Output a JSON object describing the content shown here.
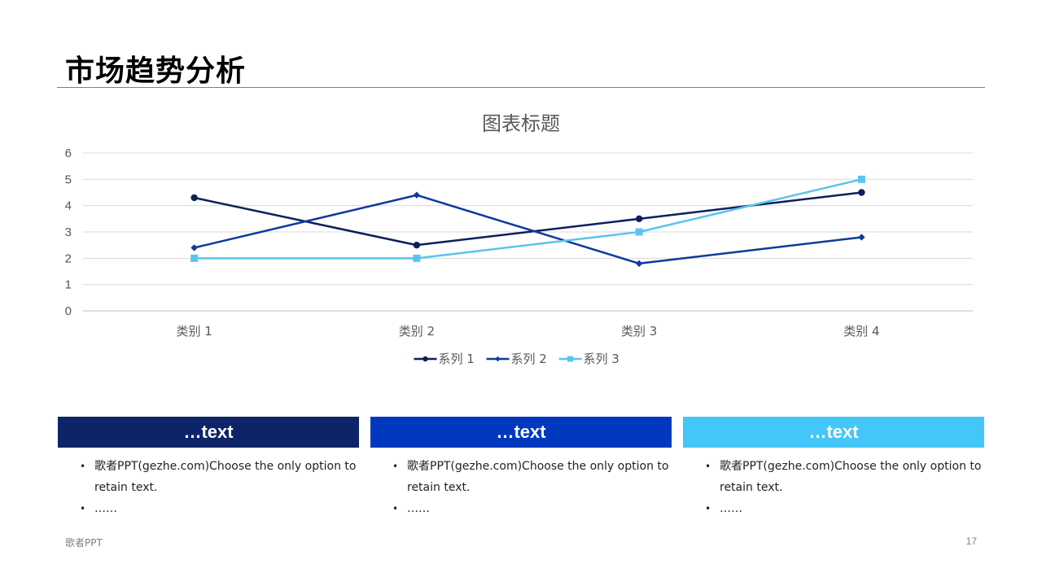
{
  "page": {
    "title": "市场趋势分析",
    "footer_left": "歌者PPT",
    "page_number": "17"
  },
  "chart_data": {
    "type": "line",
    "title": "图表标题",
    "categories": [
      "类别 1",
      "类别 2",
      "类别 3",
      "类别 4"
    ],
    "ylim": [
      0,
      6
    ],
    "yticks": [
      0,
      1,
      2,
      3,
      4,
      5,
      6
    ],
    "grid": true,
    "legend": "bottom",
    "series": [
      {
        "name": "系列 1",
        "values": [
          4.3,
          2.5,
          3.5,
          4.5
        ],
        "color": "#0b1f5c",
        "marker": "circle"
      },
      {
        "name": "系列 2",
        "values": [
          2.4,
          4.4,
          1.8,
          2.8
        ],
        "color": "#10399b",
        "marker": "diamond"
      },
      {
        "name": "系列 3",
        "values": [
          2,
          2,
          3,
          5
        ],
        "color": "#5bc4ec",
        "marker": "square"
      }
    ]
  },
  "boxes": [
    {
      "header": "…text",
      "color": "#0e2468",
      "bullets": [
        "歌者PPT(gezhe.com)Choose the only option to retain text.",
        "……"
      ]
    },
    {
      "header": "…text",
      "color": "#0039c0",
      "bullets": [
        "歌者PPT(gezhe.com)Choose the only option to retain text.",
        "……"
      ]
    },
    {
      "header": "…text",
      "color": "#45c6f8",
      "bullets": [
        "歌者PPT(gezhe.com)Choose the only option to retain text.",
        "……"
      ]
    }
  ]
}
